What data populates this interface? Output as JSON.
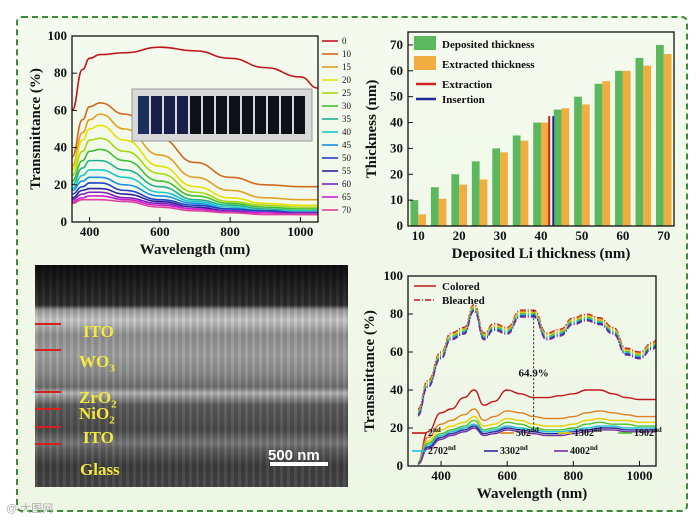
{
  "chart_data": [
    {
      "type": "line",
      "title": "",
      "xlabel": "Wavelength (nm)",
      "ylabel": "Transmittance (%)",
      "xlim": [
        350,
        1050
      ],
      "ylim": [
        0,
        100
      ],
      "xticks": [
        "400",
        "600",
        "800",
        "1000"
      ],
      "yticks": [
        "0",
        "20",
        "40",
        "60",
        "80",
        "100"
      ],
      "legend_position": "right",
      "series": [
        {
          "name": "0",
          "color": "#c0181c",
          "x": [
            350,
            380,
            400,
            430,
            500,
            600,
            700,
            800,
            900,
            1000,
            1050
          ],
          "y": [
            60,
            82,
            88,
            90,
            91,
            94,
            92,
            88,
            83,
            78,
            72
          ]
        },
        {
          "name": "10",
          "color": "#d2691e",
          "x": [
            350,
            380,
            400,
            430,
            500,
            600,
            700,
            800,
            900,
            1000,
            1050
          ],
          "y": [
            35,
            55,
            62,
            64,
            58,
            45,
            32,
            24,
            20,
            19,
            19
          ]
        },
        {
          "name": "15",
          "color": "#e0a020",
          "x": [
            350,
            380,
            400,
            430,
            500,
            600,
            700,
            800,
            900,
            1000,
            1050
          ],
          "y": [
            30,
            48,
            55,
            58,
            50,
            36,
            24,
            17,
            13,
            12,
            12
          ]
        },
        {
          "name": "20",
          "color": "#e8e000",
          "x": [
            350,
            380,
            400,
            430,
            500,
            600,
            700,
            800,
            900,
            1000,
            1050
          ],
          "y": [
            28,
            44,
            50,
            52,
            44,
            30,
            19,
            13,
            10,
            9,
            9
          ]
        },
        {
          "name": "25",
          "color": "#a8d810",
          "x": [
            350,
            380,
            400,
            430,
            500,
            600,
            700,
            800,
            900,
            1000,
            1050
          ],
          "y": [
            25,
            38,
            44,
            45,
            38,
            26,
            16,
            11,
            9,
            8,
            8
          ]
        },
        {
          "name": "30",
          "color": "#40c030",
          "x": [
            350,
            380,
            400,
            430,
            500,
            600,
            700,
            800,
            900,
            1000,
            1050
          ],
          "y": [
            22,
            33,
            38,
            39,
            33,
            22,
            14,
            10,
            8,
            7,
            7
          ]
        },
        {
          "name": "35",
          "color": "#20b090",
          "x": [
            350,
            380,
            400,
            430,
            500,
            600,
            700,
            800,
            900,
            1000,
            1050
          ],
          "y": [
            20,
            29,
            33,
            33,
            28,
            19,
            12,
            9,
            7,
            6,
            6
          ]
        },
        {
          "name": "40",
          "color": "#18c8c8",
          "x": [
            350,
            380,
            400,
            430,
            500,
            600,
            700,
            800,
            900,
            1000,
            1050
          ],
          "y": [
            18,
            25,
            28,
            28,
            24,
            16,
            11,
            8,
            6,
            6,
            6
          ]
        },
        {
          "name": "45",
          "color": "#1890e0",
          "x": [
            350,
            380,
            400,
            430,
            500,
            600,
            700,
            800,
            900,
            1000,
            1050
          ],
          "y": [
            17,
            22,
            24,
            24,
            20,
            14,
            10,
            7,
            6,
            5,
            5
          ]
        },
        {
          "name": "50",
          "color": "#2040c8",
          "x": [
            350,
            380,
            400,
            430,
            500,
            600,
            700,
            800,
            900,
            1000,
            1050
          ],
          "y": [
            15,
            19,
            21,
            21,
            17,
            12,
            9,
            7,
            6,
            5,
            5
          ]
        },
        {
          "name": "55",
          "color": "#3020a0",
          "x": [
            350,
            380,
            400,
            430,
            500,
            600,
            700,
            800,
            900,
            1000,
            1050
          ],
          "y": [
            13,
            17,
            18,
            18,
            15,
            11,
            8,
            6,
            5,
            5,
            5
          ]
        },
        {
          "name": "60",
          "color": "#8020c0",
          "x": [
            350,
            380,
            400,
            430,
            500,
            600,
            700,
            800,
            900,
            1000,
            1050
          ],
          "y": [
            12,
            15,
            16,
            16,
            13,
            10,
            7,
            6,
            5,
            5,
            5
          ]
        },
        {
          "name": "65",
          "color": "#d020d0",
          "x": [
            350,
            380,
            400,
            430,
            500,
            600,
            700,
            800,
            900,
            1000,
            1050
          ],
          "y": [
            11,
            13,
            14,
            14,
            12,
            9,
            7,
            5,
            5,
            4,
            4
          ]
        },
        {
          "name": "70",
          "color": "#e040a0",
          "x": [
            350,
            380,
            400,
            430,
            500,
            600,
            700,
            800,
            900,
            1000,
            1050
          ],
          "y": [
            10,
            12,
            12,
            12,
            11,
            8,
            6,
            5,
            4,
            4,
            4
          ]
        }
      ]
    },
    {
      "type": "bar",
      "title": "",
      "xlabel": "Deposited Li thickness (nm)",
      "ylabel": "Thickness (nm)",
      "ylim": [
        0,
        75
      ],
      "yticks": [
        "0",
        "10",
        "20",
        "30",
        "40",
        "50",
        "60",
        "70"
      ],
      "categories": [
        "10",
        "15",
        "20",
        "25",
        "30",
        "35",
        "40",
        "45",
        "50",
        "55",
        "60",
        "65",
        "70"
      ],
      "series": [
        {
          "name": "Deposited thickness",
          "color": "#5cb85c",
          "values": [
            10,
            15,
            20,
            25,
            30,
            35,
            40,
            45,
            50,
            55,
            60,
            65,
            70
          ]
        },
        {
          "name": "Extracted thickness",
          "color": "#f0ad40",
          "values": [
            4.5,
            10.5,
            16,
            18,
            28.5,
            33,
            40,
            45.5,
            47,
            56,
            60,
            62,
            66.5
          ]
        }
      ],
      "markers": [
        {
          "name": "Extraction",
          "color": "#d62020",
          "x": 42
        },
        {
          "name": "Insertion",
          "color": "#1a2a9a",
          "x": 43
        }
      ],
      "legend_position": "top-left"
    },
    {
      "type": "line",
      "title": "",
      "xlabel": "Wavelength (nm)",
      "ylabel": "Transmittance (%)",
      "xlim": [
        300,
        1050
      ],
      "ylim": [
        0,
        100
      ],
      "xticks": [
        "400",
        "600",
        "800",
        "1000"
      ],
      "yticks": [
        "0",
        "20",
        "40",
        "60",
        "80",
        "100"
      ],
      "legend_position": "top-left",
      "legend_styles": [
        {
          "name": "Colored",
          "style": "solid",
          "color": "#c0181c"
        },
        {
          "name": "Bleached",
          "style": "dash-dot",
          "color": "#c0181c"
        }
      ],
      "annotation": {
        "text": "64.9%",
        "x": 680,
        "y_from": 82,
        "y_to": 18
      },
      "cycles": [
        {
          "name": "2",
          "sup": "nd",
          "color": "#c0181c"
        },
        {
          "name": "502",
          "sup": "nd",
          "color": "#e08020"
        },
        {
          "name": "1302",
          "sup": "nd",
          "color": "#e8d000"
        },
        {
          "name": "1902",
          "sup": "nd",
          "color": "#50c030"
        },
        {
          "name": "2702",
          "sup": "nd",
          "color": "#20c0e0"
        },
        {
          "name": "3302",
          "sup": "nd",
          "color": "#2a2aa0"
        },
        {
          "name": "4002",
          "sup": "nd",
          "color": "#7a30a0"
        }
      ],
      "bleached_curve": {
        "x": [
          330,
          360,
          400,
          430,
          470,
          500,
          530,
          560,
          600,
          640,
          680,
          720,
          760,
          800,
          840,
          880,
          920,
          960,
          1000,
          1040,
          1050
        ],
        "y": [
          30,
          45,
          60,
          70,
          73,
          85,
          70,
          75,
          73,
          82,
          82,
          70,
          72,
          78,
          80,
          78,
          73,
          62,
          60,
          65,
          66
        ]
      },
      "colored_curves": [
        {
          "x": [
            330,
            360,
            400,
            430,
            470,
            500,
            530,
            560,
            600,
            640,
            680,
            720,
            760,
            800,
            840,
            880,
            920,
            960,
            1000,
            1040,
            1050
          ],
          "y": [
            2,
            18,
            28,
            30,
            36,
            40,
            32,
            34,
            40,
            38,
            36,
            36,
            37,
            38,
            40,
            40,
            38,
            36,
            35,
            35,
            35
          ]
        },
        {
          "x": [
            330,
            360,
            400,
            430,
            470,
            500,
            530,
            560,
            600,
            640,
            680,
            720,
            760,
            800,
            840,
            880,
            920,
            960,
            1000,
            1040,
            1050
          ],
          "y": [
            2,
            15,
            22,
            24,
            27,
            30,
            24,
            26,
            29,
            28,
            26,
            25,
            25,
            26,
            28,
            29,
            28,
            27,
            26,
            26,
            26
          ]
        },
        {
          "x": [
            330,
            360,
            400,
            430,
            470,
            500,
            530,
            560,
            600,
            640,
            680,
            720,
            760,
            800,
            840,
            880,
            920,
            960,
            1000,
            1040,
            1050
          ],
          "y": [
            2,
            13,
            19,
            21,
            23,
            26,
            21,
            22,
            25,
            24,
            22,
            21,
            21,
            22,
            24,
            25,
            24,
            24,
            23,
            23,
            23
          ]
        },
        {
          "x": [
            330,
            360,
            400,
            430,
            470,
            500,
            530,
            560,
            600,
            640,
            680,
            720,
            760,
            800,
            840,
            880,
            920,
            960,
            1000,
            1040,
            1050
          ],
          "y": [
            2,
            12,
            17,
            19,
            21,
            24,
            19,
            20,
            23,
            22,
            20,
            19,
            19,
            20,
            22,
            23,
            22,
            22,
            21,
            21,
            21
          ]
        },
        {
          "x": [
            330,
            360,
            400,
            430,
            470,
            500,
            530,
            560,
            600,
            640,
            680,
            720,
            760,
            800,
            840,
            880,
            920,
            960,
            1000,
            1040,
            1050
          ],
          "y": [
            1,
            11,
            16,
            18,
            20,
            22,
            18,
            19,
            21,
            20,
            19,
            18,
            18,
            19,
            20,
            21,
            21,
            20,
            20,
            20,
            20
          ]
        },
        {
          "x": [
            330,
            360,
            400,
            430,
            470,
            500,
            530,
            560,
            600,
            640,
            680,
            720,
            760,
            800,
            840,
            880,
            920,
            960,
            1000,
            1040,
            1050
          ],
          "y": [
            1,
            10,
            15,
            17,
            19,
            21,
            17,
            18,
            20,
            19,
            18,
            17,
            17,
            18,
            19,
            20,
            20,
            19,
            19,
            19,
            19
          ]
        },
        {
          "x": [
            330,
            360,
            400,
            430,
            470,
            500,
            530,
            560,
            600,
            640,
            680,
            720,
            760,
            800,
            840,
            880,
            920,
            960,
            1000,
            1040,
            1050
          ],
          "y": [
            1,
            9,
            14,
            16,
            18,
            20,
            16,
            17,
            19,
            18,
            17,
            16,
            16,
            17,
            18,
            19,
            19,
            18,
            18,
            18,
            18
          ]
        }
      ]
    }
  ],
  "sem": {
    "layers": [
      {
        "label": "ITO",
        "sub": ""
      },
      {
        "label": "WO",
        "sub": "3"
      },
      {
        "label": "ZrO",
        "sub": "2"
      },
      {
        "label": "NiO",
        "sub": "2"
      },
      {
        "label": "ITO",
        "sub": ""
      },
      {
        "label": "Glass",
        "sub": ""
      }
    ],
    "scale_bar": "500 nm"
  },
  "watermark": "@ 大图网"
}
